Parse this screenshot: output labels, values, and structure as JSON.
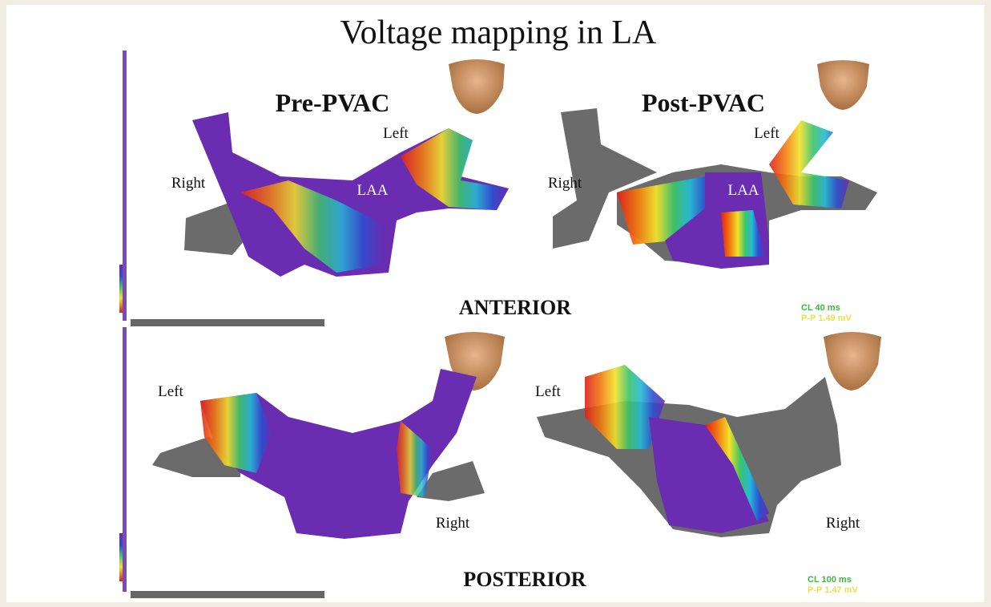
{
  "title": "Voltage mapping in LA",
  "anterior": {
    "label": "ANTERIOR",
    "pre": {
      "title": "Pre-PVAC",
      "right": "Right",
      "left": "Left",
      "laa": "LAA"
    },
    "post": {
      "title": "Post-PVAC",
      "right": "Right",
      "left": "Left",
      "laa": "LAA"
    },
    "cl": "CL 40 ms",
    "pp": "P-P 1.49 mV"
  },
  "posterior": {
    "label": "POSTERIOR",
    "pre": {
      "left": "Left",
      "right": "Right"
    },
    "post": {
      "left": "Left",
      "right": "Right"
    },
    "cl": "CL 100 ms",
    "pp": "P-P 1.47 mV"
  }
}
